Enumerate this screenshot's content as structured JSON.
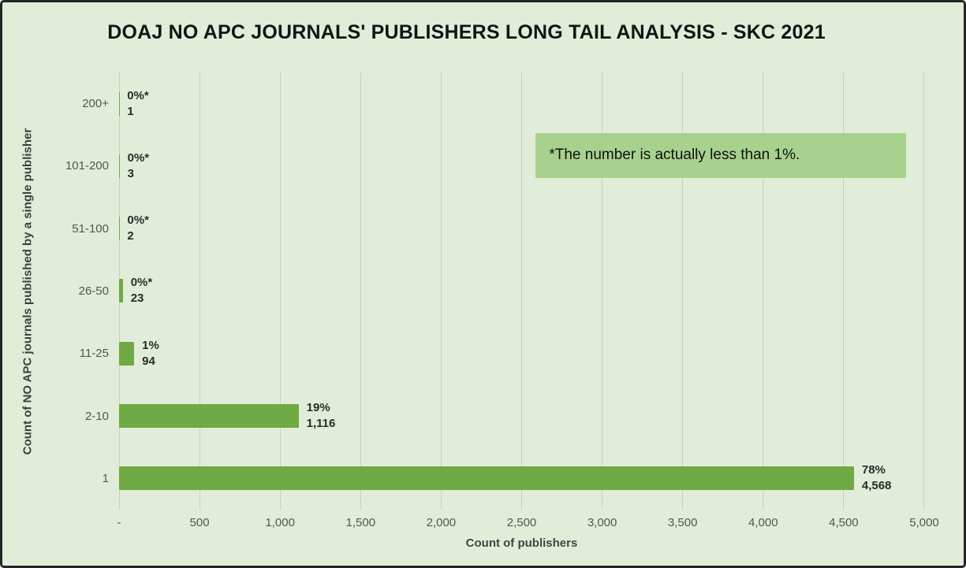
{
  "chart_data": {
    "type": "bar",
    "orientation": "horizontal",
    "title": "DOAJ NO APC JOURNALS' PUBLISHERS LONG TAIL ANALYSIS - SKC 2021",
    "xlabel": "Count of publishers",
    "ylabel": "Count of NO APC journals published by a single publisher",
    "categories": [
      "200+",
      "101-200",
      "51-100",
      "26-50",
      "11-25",
      "2-10",
      "1"
    ],
    "values": [
      1,
      3,
      2,
      23,
      94,
      1116,
      4568
    ],
    "percent_labels": [
      "0%*",
      "0%*",
      "0%*",
      "0%*",
      "1%",
      "19%",
      "78%"
    ],
    "value_labels": [
      "1",
      "3",
      "2",
      "23",
      "94",
      "1,116",
      "4,568"
    ],
    "xlim": [
      0,
      5000
    ],
    "x_ticks": [
      "-",
      "500",
      "1,000",
      "1,500",
      "2,000",
      "2,500",
      "3,000",
      "3,500",
      "4,000",
      "4,500",
      "5,000"
    ],
    "grid": true,
    "legend": "none",
    "annotation": "*The number is actually less than 1%.",
    "bar_color": "#6faa45",
    "background_color": "#e1edd8",
    "annotation_bg_color": "#a9d18e",
    "gridline_color": "#c3d4b8"
  }
}
